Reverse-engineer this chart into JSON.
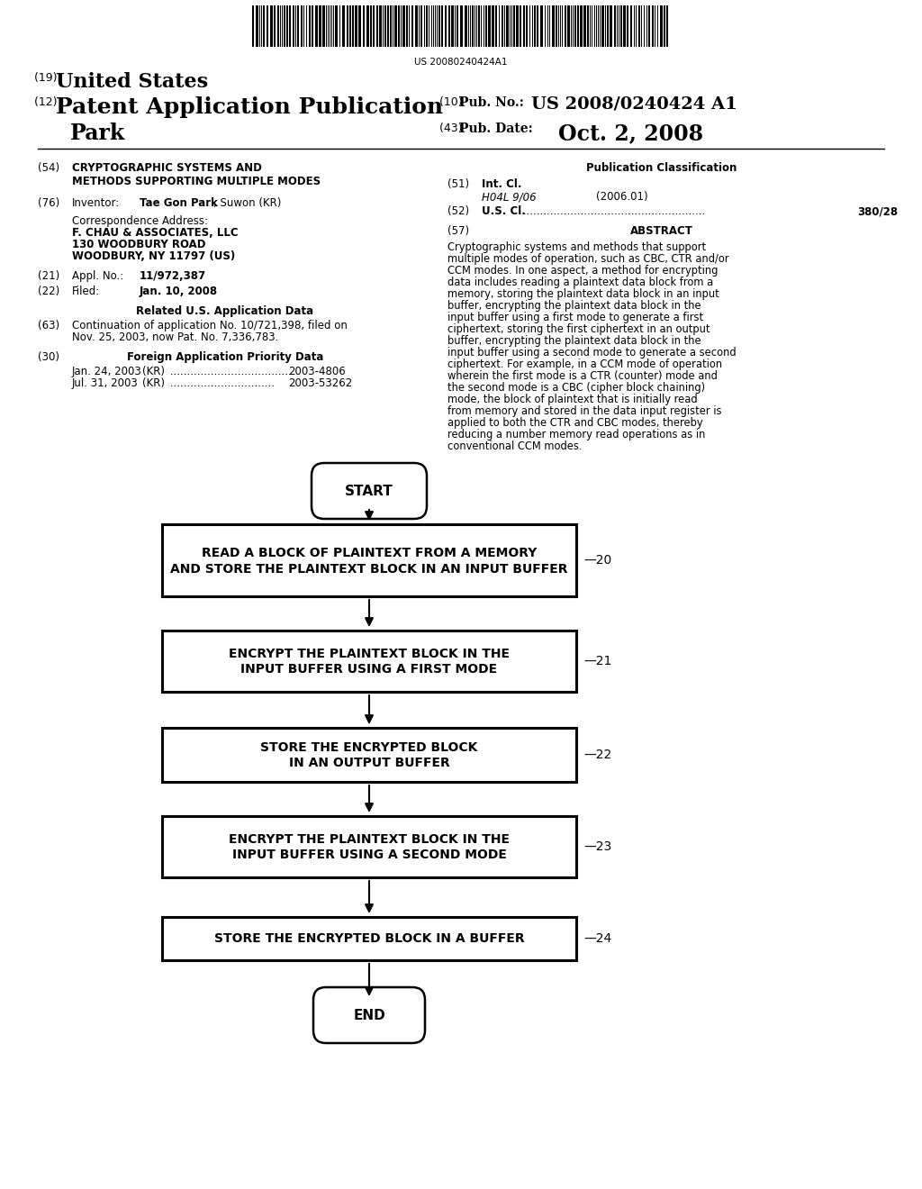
{
  "bg_color": "#ffffff",
  "barcode_text": "US 20080240424A1",
  "header": {
    "line19_pre": "(19) ",
    "line19_main": "United States",
    "line12_pre": "(12) ",
    "line12_main": "Patent Application Publication",
    "line10_pre": "(10) ",
    "line10_label": "Pub. No.: ",
    "line10_value": "US 2008/0240424 A1",
    "inventor_name": "Park",
    "line43_pre": "(43) ",
    "line43_label": "Pub. Date:",
    "line43_value": "Oct. 2, 2008"
  },
  "left_col": {
    "item54_label": "(54)",
    "item54_line1": "CRYPTOGRAPHIC SYSTEMS AND",
    "item54_line2": "METHODS SUPPORTING MULTIPLE MODES",
    "item76_label": "(76)",
    "item76_key": "Inventor:",
    "item76_name": "Tae Gon Park",
    "item76_rest": ", Suwon (KR)",
    "corr_label": "Correspondence Address:",
    "corr_line1": "F. CHAU & ASSOCIATES, LLC",
    "corr_line2": "130 WOODBURY ROAD",
    "corr_line3": "WOODBURY, NY 11797 (US)",
    "item21_label": "(21)",
    "item21_key": "Appl. No.:",
    "item21_value": "11/972,387",
    "item22_label": "(22)",
    "item22_key": "Filed:",
    "item22_value": "Jan. 10, 2008",
    "related_title": "Related U.S. Application Data",
    "item63_label": "(63)",
    "item63_line1": "Continuation of application No. 10/721,398, filed on",
    "item63_line2": "Nov. 25, 2003, now Pat. No. 7,336,783.",
    "item30_label": "(30)",
    "item30_title": "Foreign Application Priority Data",
    "foreign1_date": "Jan. 24, 2003",
    "foreign1_country": "(KR)",
    "foreign1_dots": " ....................................",
    "foreign1_num": "2003-4806",
    "foreign2_date": "Jul. 31, 2003",
    "foreign2_country": "(KR)",
    "foreign2_dots": " ...............................",
    "foreign2_num": "2003-53262"
  },
  "right_col": {
    "pub_class_title": "Publication Classification",
    "item51_label": "(51)",
    "item51_key": "Int. Cl.",
    "item51_class": "H04L 9/06",
    "item51_year": "(2006.01)",
    "item52_label": "(52)",
    "item52_key": "U.S. Cl.",
    "item52_dots": " ......................................................",
    "item52_value": "380/28",
    "item57_label": "(57)",
    "item57_title": "ABSTRACT",
    "abstract_text": "Cryptographic systems and methods that support multiple modes of operation, such as CBC, CTR and/or CCM modes. In one aspect, a method for encrypting data includes reading a plaintext data block from a memory, storing the plaintext data block in an input buffer, encrypting the plaintext data block in the input buffer using a first mode to generate a first ciphertext, storing the first ciphertext in an output buffer, encrypting the plaintext data block in the input buffer using a second mode to generate a second ciphertext. For example, in a CCM mode of operation wherein the first mode is a CTR (counter) mode and the second mode is a CBC (cipher block chaining) mode, the block of plaintext that is initially read from memory and stored in the data input register is applied to both the CTR and CBC modes, thereby reducing a number memory read operations as in conventional CCM modes."
  },
  "flowchart": {
    "start_text": "START",
    "box20_line1": "READ A BLOCK OF PLAINTEXT FROM A MEMORY",
    "box20_line2": "AND STORE THE PLAINTEXT BLOCK IN AN INPUT BUFFER",
    "box20_label": "20",
    "box21_line1": "ENCRYPT THE PLAINTEXT BLOCK IN THE",
    "box21_line2": "INPUT BUFFER USING A FIRST MODE",
    "box21_label": "21",
    "box22_line1": "STORE THE ENCRYPTED BLOCK",
    "box22_line2": "IN AN OUTPUT BUFFER",
    "box22_label": "22",
    "box23_line1": "ENCRYPT THE PLAINTEXT BLOCK IN THE",
    "box23_line2": "INPUT BUFFER USING A SECOND MODE",
    "box23_label": "23",
    "box24_text": "STORE THE ENCRYPTED BLOCK IN A BUFFER",
    "box24_label": "24",
    "end_text": "END"
  }
}
